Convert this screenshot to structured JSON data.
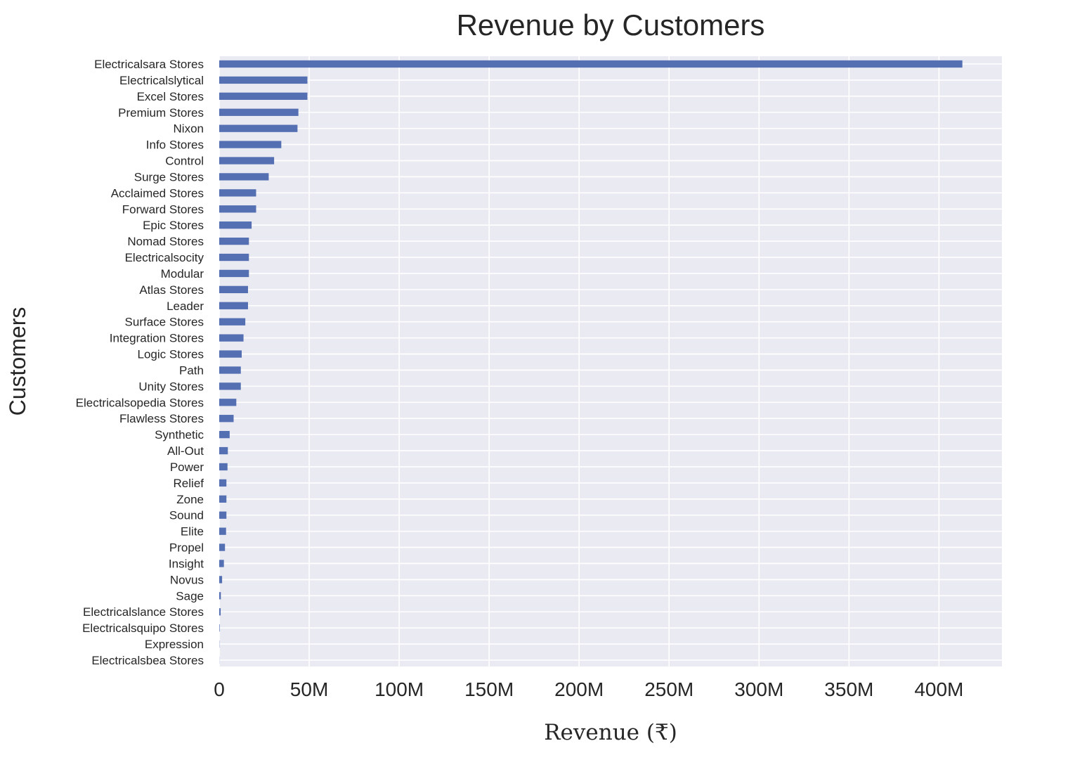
{
  "chart_data": {
    "type": "bar",
    "orientation": "horizontal",
    "title": "Revenue by Customers",
    "xlabel": "Revenue (₹)",
    "ylabel": "Customers",
    "xlim": [
      0,
      435000000
    ],
    "x_ticks": [
      0,
      50000000,
      100000000,
      150000000,
      200000000,
      250000000,
      300000000,
      350000000,
      400000000
    ],
    "x_tick_labels": [
      "0",
      "50M",
      "100M",
      "150M",
      "200M",
      "250M",
      "300M",
      "350M",
      "400M"
    ],
    "grid": true,
    "background_color": "#eaeaf2",
    "grid_color": "#ffffff",
    "bar_color": "#5470b3",
    "categories": [
      "Electricalsara Stores",
      "Electricalslytical",
      "Excel Stores",
      "Premium Stores",
      "Nixon",
      "Info Stores",
      "Control",
      "Surge Stores",
      "Acclaimed Stores",
      "Forward Stores",
      "Epic Stores",
      "Nomad Stores",
      "Electricalsocity",
      "Modular",
      "Atlas Stores",
      "Leader",
      "Surface Stores",
      "Integration Stores",
      "Logic Stores",
      "Path",
      "Unity Stores",
      "Electricalsopedia Stores",
      "Flawless Stores",
      "Synthetic",
      "All-Out",
      "Power",
      "Relief",
      "Zone",
      "Sound",
      "Elite",
      "Propel",
      "Insight",
      "Novus",
      "Sage",
      "Electricalslance Stores",
      "Electricalsquipo Stores",
      "Expression",
      "Electricalsbea Stores"
    ],
    "values": [
      413000000,
      49000000,
      49000000,
      44000000,
      43500000,
      34500000,
      30500000,
      27500000,
      20500000,
      20500000,
      18000000,
      16500000,
      16500000,
      16500000,
      16000000,
      16000000,
      14500000,
      13500000,
      12500000,
      12000000,
      12000000,
      9500000,
      8000000,
      5800000,
      4800000,
      4600000,
      4000000,
      4000000,
      4000000,
      3800000,
      3200000,
      2600000,
      1600000,
      900000,
      800000,
      250000,
      100000,
      50000
    ]
  }
}
